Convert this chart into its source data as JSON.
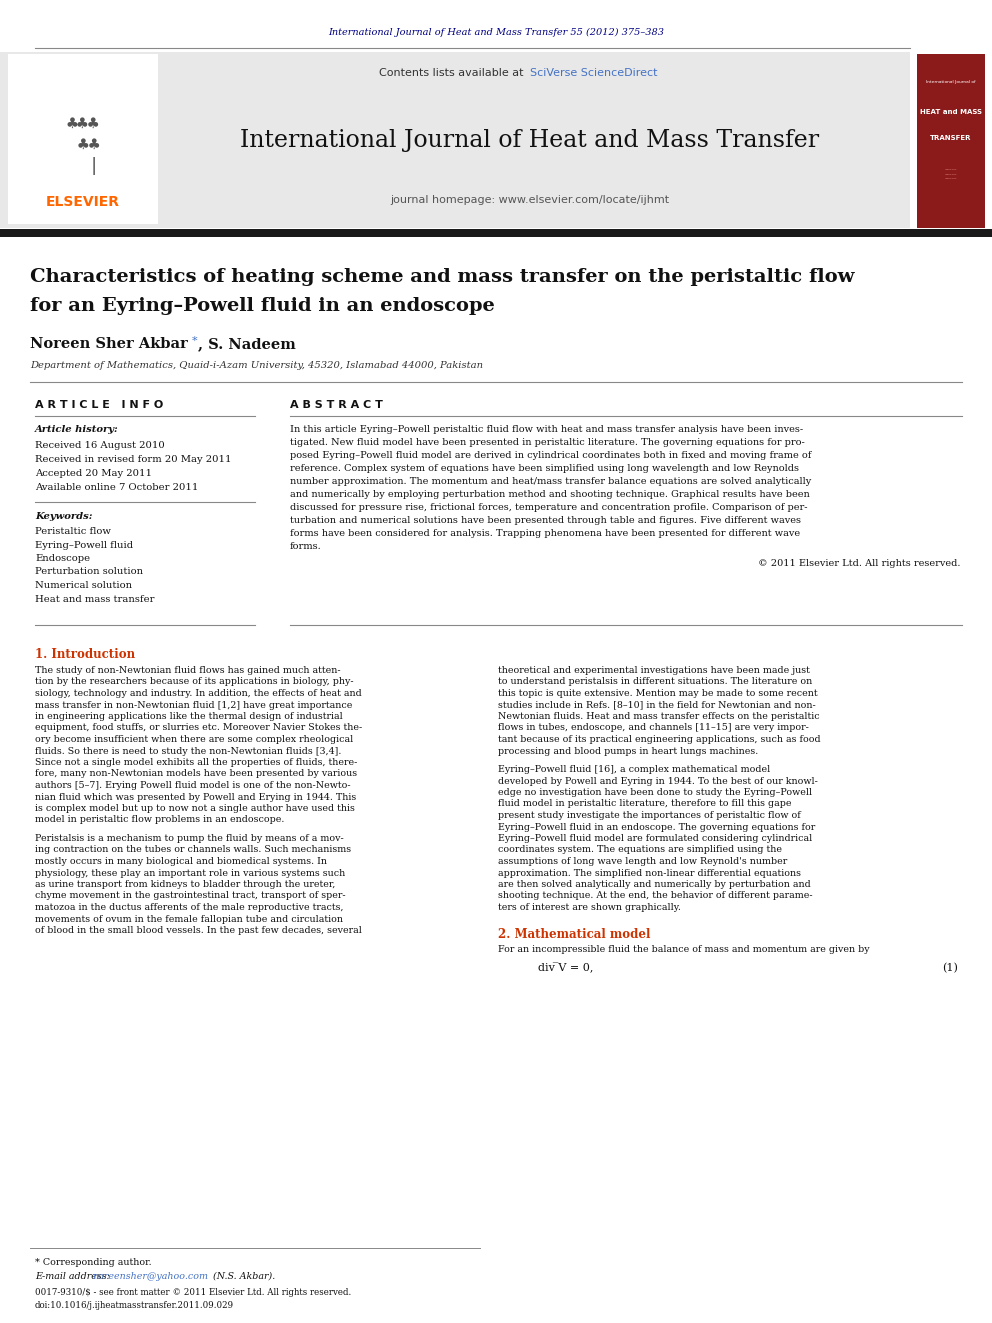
{
  "page_width": 9.92,
  "page_height": 13.23,
  "bg_color": "#ffffff",
  "header_journal_text": "International Journal of Heat and Mass Transfer 55 (2012) 375–383",
  "header_journal_color": "#000080",
  "contents_text": "Contents lists available at ",
  "sciverse_text": "SciVerse ScienceDirect",
  "sciverse_color": "#4472c4",
  "journal_name": "International Journal of Heat and Mass Transfer",
  "homepage_text": "journal homepage: www.elsevier.com/locate/ijhmt",
  "elsevier_color": "#ff6600",
  "header_bg": "#e8e8e8",
  "red_box_color": "#8b1a1a",
  "thick_bar_color": "#1a1a1a",
  "paper_title_line1": "Characteristics of heating scheme and mass transfer on the peristaltic flow",
  "paper_title_line2": "for an Eyring–Powell fluid in an endoscope",
  "affiliation": "Department of Mathematics, Quaid-i-Azam University, 45320, Islamabad 44000, Pakistan",
  "article_info_heading": "A R T I C L E   I N F O",
  "abstract_heading": "A B S T R A C T",
  "article_history_label": "Article history:",
  "received1": "Received 16 August 2010",
  "received2": "Received in revised form 20 May 2011",
  "accepted": "Accepted 20 May 2011",
  "available": "Available online 7 October 2011",
  "keywords_label": "Keywords:",
  "keywords": [
    "Peristaltic flow",
    "Eyring–Powell fluid",
    "Endoscope",
    "Perturbation solution",
    "Numerical solution",
    "Heat and mass transfer"
  ],
  "copyright_text": "© 2011 Elsevier Ltd. All rights reserved.",
  "intro_heading": "1. Introduction",
  "section2_heading": "2. Mathematical model",
  "section2_text": "For an incompressible fluid the balance of mass and momentum are given by",
  "eq1_text": "div ̅V = 0,",
  "eq1_number": "(1)",
  "footnote_star": "* Corresponding author.",
  "footnote_email_label": "E-mail address: ",
  "footnote_email": "noreensher@yahoo.com",
  "footnote_name": " (N.S. Akbar).",
  "issn_text": "0017-9310/$ - see front matter © 2011 Elsevier Ltd. All rights reserved.",
  "doi_text": "doi:10.1016/j.ijheatmasstransfer.2011.09.029"
}
